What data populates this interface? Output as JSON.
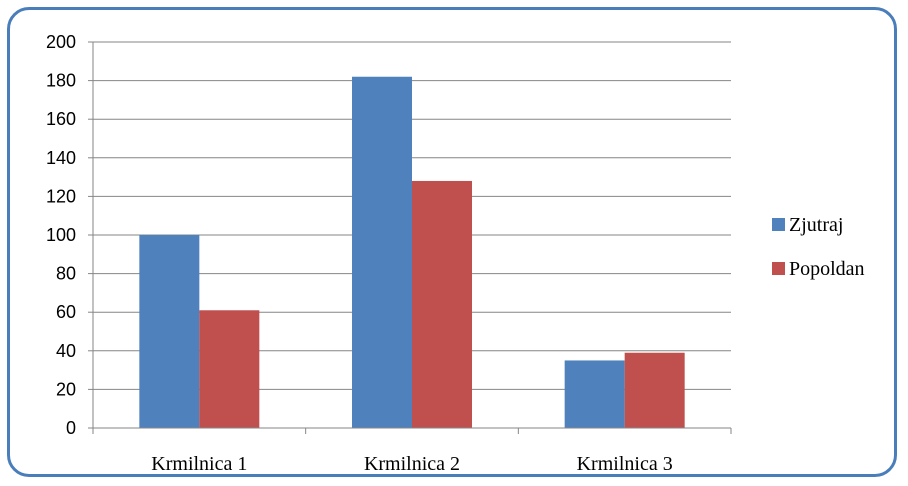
{
  "chart_data": {
    "type": "bar",
    "title": "",
    "xlabel": "",
    "ylabel": "",
    "categories": [
      "Krmilnica 1",
      "Krmilnica 2",
      "Krmilnica 3"
    ],
    "series": [
      {
        "name": "Zjutraj",
        "values": [
          100,
          182,
          35
        ],
        "color": "#4f81bd"
      },
      {
        "name": "Popoldan",
        "values": [
          61,
          128,
          39
        ],
        "color": "#c0504d"
      }
    ],
    "ylim": [
      0,
      200
    ],
    "yticks": [
      0,
      20,
      40,
      60,
      80,
      100,
      120,
      140,
      160,
      180,
      200
    ],
    "grid": true,
    "legend_position": "right"
  },
  "colors": {
    "frame_border": "#4a7ebb",
    "grid": "#868686",
    "axis": "#868686"
  }
}
